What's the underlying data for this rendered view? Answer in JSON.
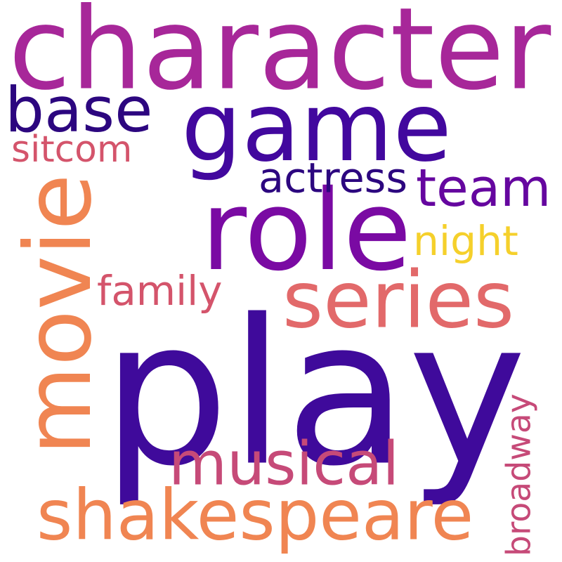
{
  "words": [
    {
      "text": "play",
      "color": "#3f0a9b"
    },
    {
      "text": "game",
      "color": "#42089e"
    },
    {
      "text": "character",
      "color": "#a72799"
    },
    {
      "text": "movie",
      "color": "#f08552"
    },
    {
      "text": "role",
      "color": "#7a0aa3"
    },
    {
      "text": "shakespeare",
      "color": "#f08552"
    },
    {
      "text": "series",
      "color": "#e2696a"
    },
    {
      "text": "team",
      "color": "#65069f"
    },
    {
      "text": "base",
      "color": "#2c067f"
    },
    {
      "text": "musical",
      "color": "#c64a78"
    },
    {
      "text": "actress",
      "color": "#2c067f"
    },
    {
      "text": "broadway",
      "color": "#c64a78"
    },
    {
      "text": "family",
      "color": "#d4546b"
    },
    {
      "text": "night",
      "color": "#f5d02b"
    },
    {
      "text": "sitcom",
      "color": "#d4546b"
    }
  ]
}
